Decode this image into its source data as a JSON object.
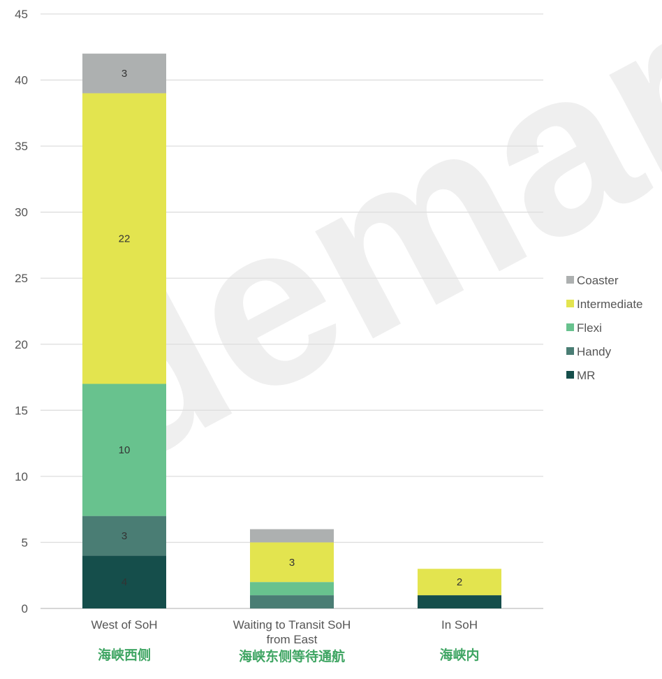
{
  "chart_data": {
    "type": "bar",
    "stacked": true,
    "categories": [
      "West of SoH",
      "Waiting to Transit SoH from East",
      "In SoH"
    ],
    "category_subtitles": [
      "海峡西侧",
      "海峡东侧等待通航",
      "海峡内"
    ],
    "series": [
      {
        "name": "MR",
        "color": "#154e4b",
        "values": [
          4,
          0,
          1
        ],
        "labels": [
          "4",
          "",
          ""
        ]
      },
      {
        "name": "Handy",
        "color": "#4a7d74",
        "values": [
          3,
          1,
          0
        ],
        "labels": [
          "3",
          "",
          ""
        ]
      },
      {
        "name": "Flexi",
        "color": "#68c28e",
        "values": [
          10,
          1,
          0
        ],
        "labels": [
          "10",
          "",
          ""
        ]
      },
      {
        "name": "Intermediate",
        "color": "#e3e44f",
        "values": [
          22,
          3,
          2
        ],
        "labels": [
          "22",
          "3",
          "2"
        ]
      },
      {
        "name": "Coaster",
        "color": "#adb0b0",
        "values": [
          3,
          1,
          0
        ],
        "labels": [
          "3",
          "",
          ""
        ]
      }
    ],
    "legend_order": [
      "Coaster",
      "Intermediate",
      "Flexi",
      "Handy",
      "MR"
    ],
    "legend_position": "right",
    "ylim": [
      0,
      45
    ],
    "yticks": [
      0,
      5,
      10,
      15,
      20,
      25,
      30,
      35,
      40,
      45
    ],
    "grid": true,
    "title": "",
    "xlabel": "",
    "ylabel": ""
  },
  "watermark": "demar"
}
